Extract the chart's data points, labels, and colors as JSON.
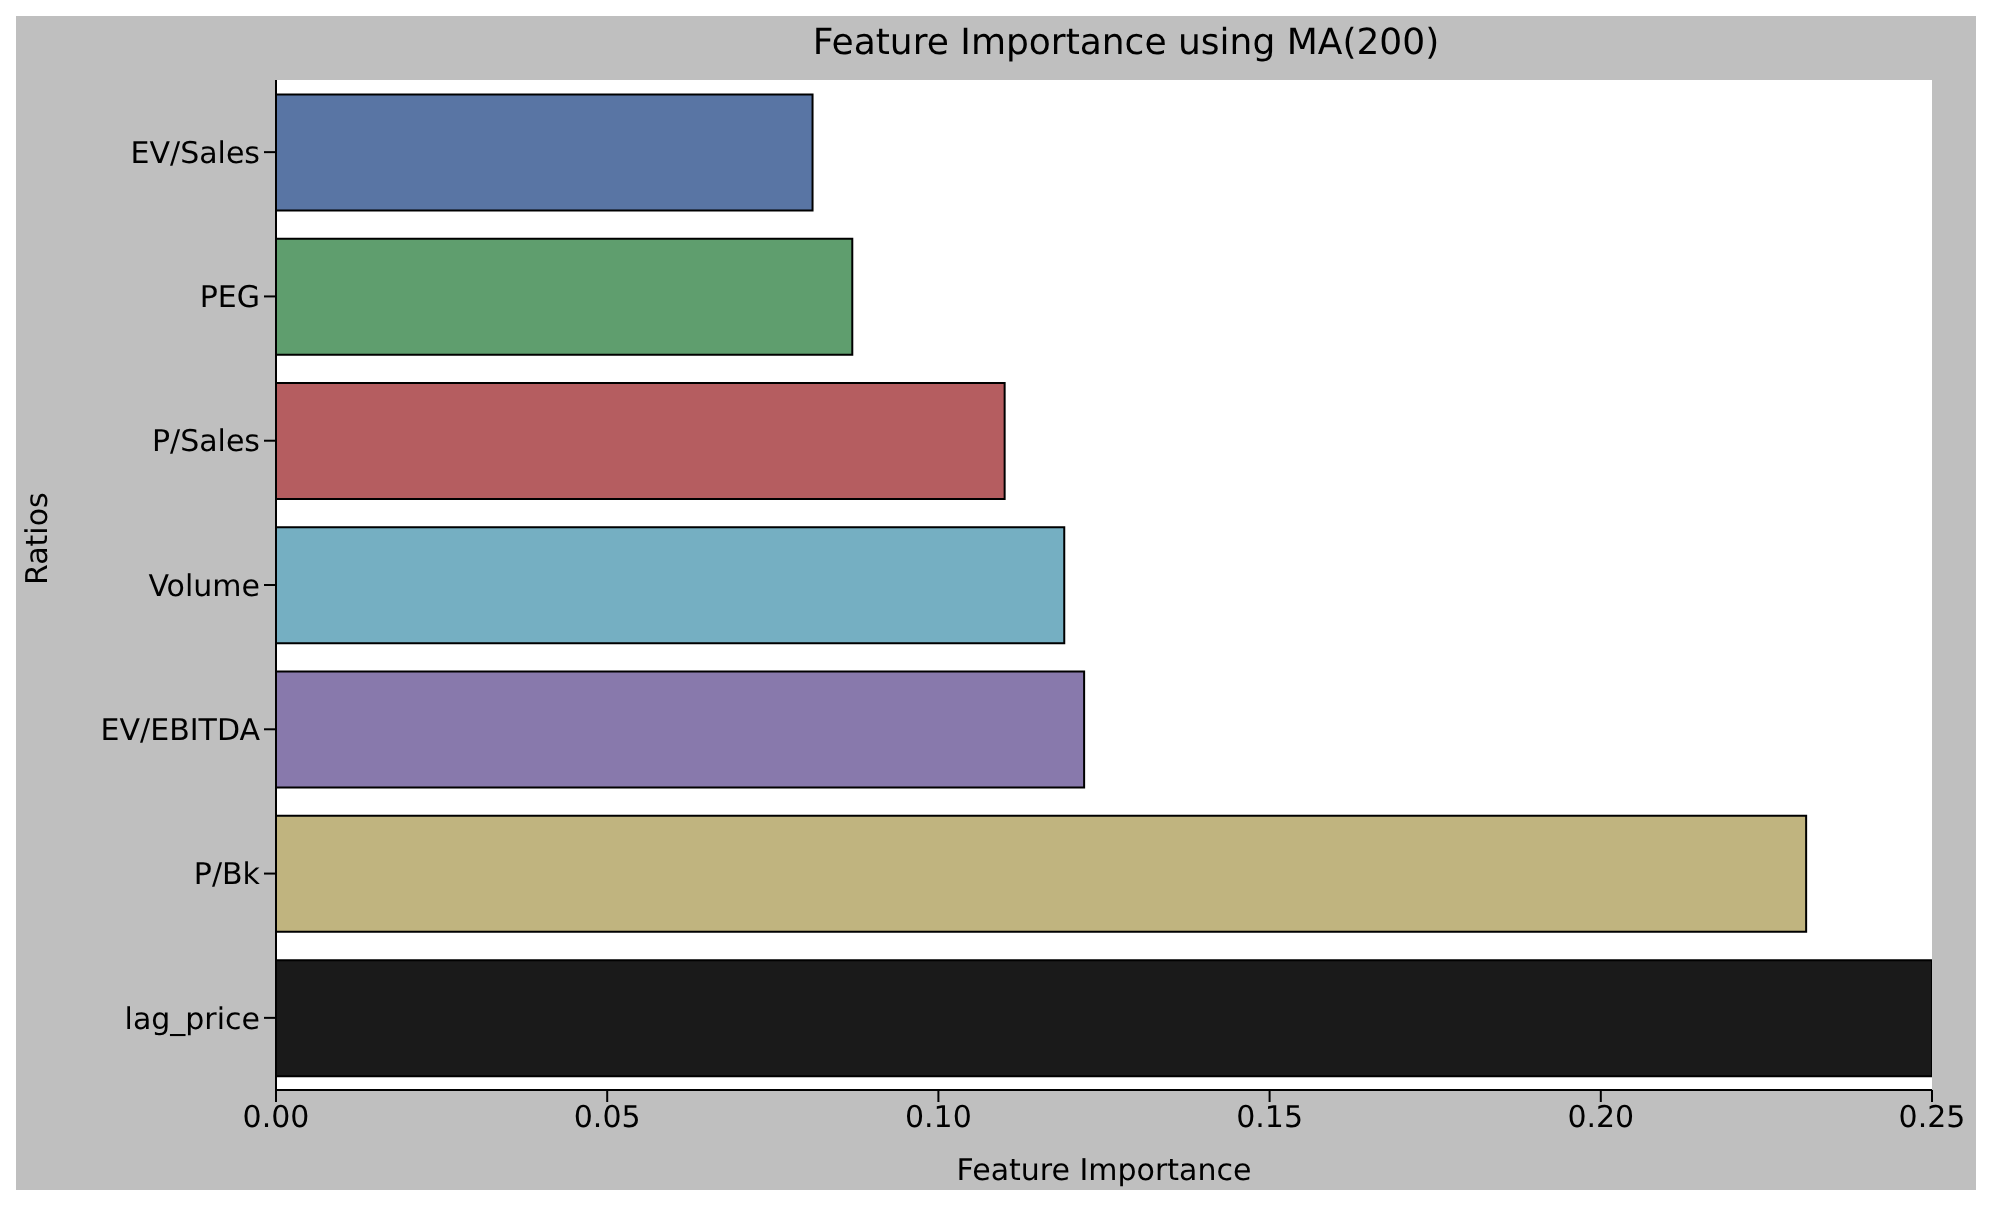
{
  "chart_data": {
    "type": "bar",
    "orientation": "horizontal",
    "title": "Feature Importance using MA(200)",
    "xlabel": "Feature Importance",
    "ylabel": "Ratios",
    "categories": [
      "EV/Sales",
      "PEG",
      "P/Sales",
      "Volume",
      "EV/EBITDA",
      "P/Bk",
      "lag_price"
    ],
    "values": [
      0.081,
      0.087,
      0.11,
      0.119,
      0.122,
      0.231,
      0.25
    ],
    "colors": [
      "#5975a4",
      "#5f9e6e",
      "#b55d60",
      "#75afc2",
      "#8879ac",
      "#c0b47f",
      "#1a1a1a"
    ],
    "xlim": [
      0,
      0.25
    ],
    "xticks": [
      {
        "value": 0,
        "label": "0.00"
      },
      {
        "value": 0.05,
        "label": "0.05"
      },
      {
        "value": 0.1,
        "label": "0.10"
      },
      {
        "value": 0.15,
        "label": "0.15"
      },
      {
        "value": 0.2,
        "label": "0.20"
      },
      {
        "value": 0.25,
        "label": "0.25"
      }
    ]
  }
}
